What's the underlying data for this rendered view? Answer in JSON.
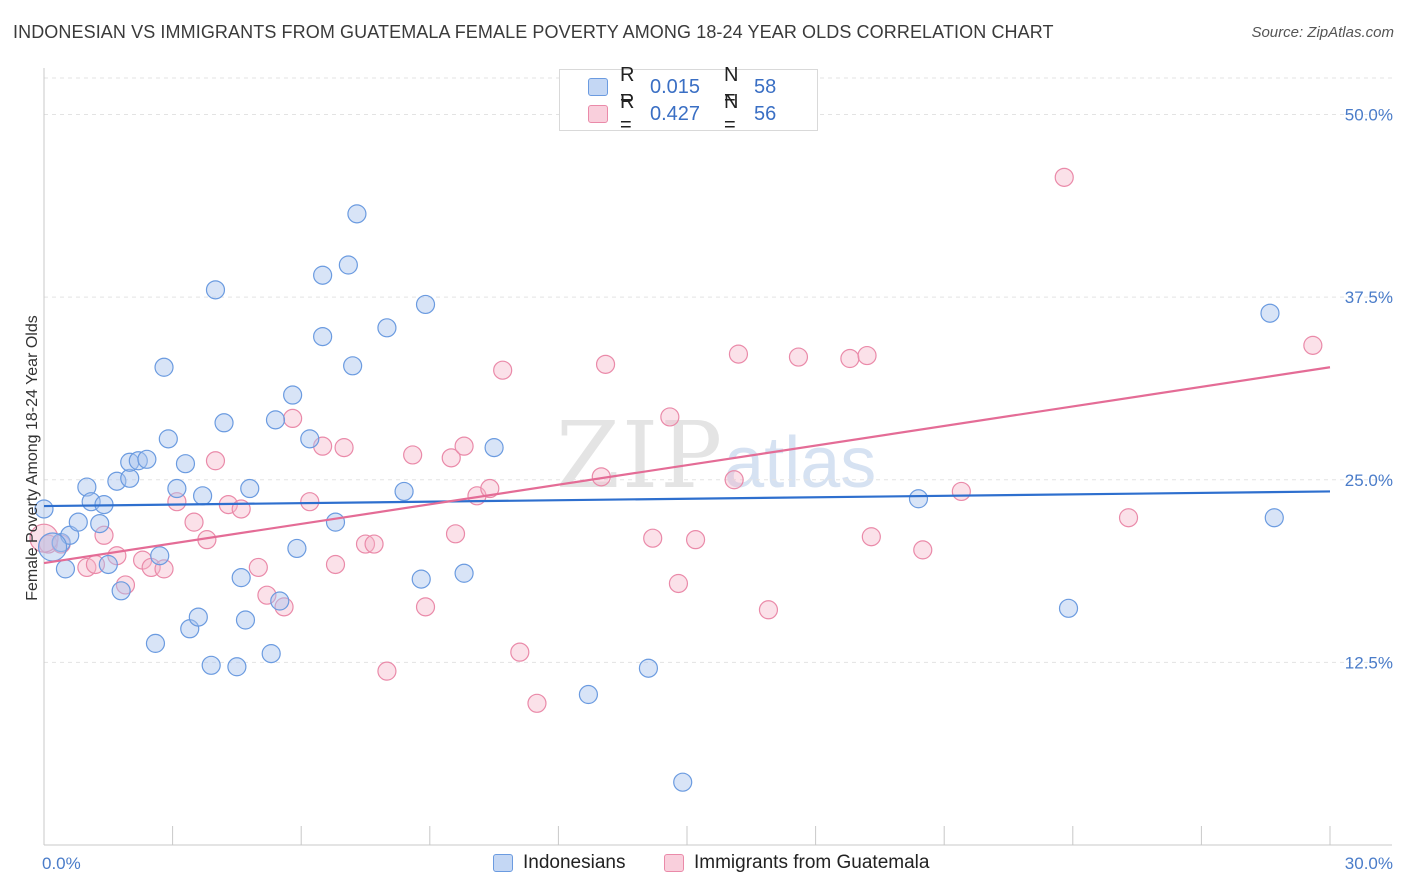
{
  "header": {
    "title": "INDONESIAN VS IMMIGRANTS FROM GUATEMALA FEMALE POVERTY AMONG 18-24 YEAR OLDS CORRELATION CHART",
    "source": "Source: ZipAtlas.com"
  },
  "watermark": {
    "zip": "ZIP",
    "atlas": "atlas"
  },
  "legend": {
    "r_label": "R =",
    "n_label": "N =",
    "series1": {
      "r": "0.015",
      "n": "58"
    },
    "series2": {
      "r": "0.427",
      "n": "56"
    }
  },
  "chart_data": {
    "type": "scatter",
    "title": "INDONESIAN VS IMMIGRANTS FROM GUATEMALA FEMALE POVERTY AMONG 18-24 YEAR OLDS CORRELATION CHART",
    "xlabel": "",
    "ylabel": "Female Poverty Among 18-24 Year Olds",
    "xlim": [
      0,
      30
    ],
    "ylim": [
      0,
      52.5
    ],
    "x_tick_labels": [
      "0.0%",
      "30.0%"
    ],
    "y_ticks": [
      12.5,
      25.0,
      37.5,
      50.0
    ],
    "y_tick_labels": [
      "12.5%",
      "25.0%",
      "37.5%",
      "50.0%"
    ],
    "colors": {
      "Indonesians": "#6b9be0",
      "Immigrants from Guatemala": "#ea8aa9",
      "line1": "#2e6fce",
      "line2": "#e46c96"
    },
    "series": [
      {
        "name": "Indonesians",
        "trend": {
          "x": [
            0,
            30
          ],
          "y": [
            23.2,
            24.2
          ]
        },
        "points": [
          [
            0.0,
            23.0
          ],
          [
            0.4,
            20.7
          ],
          [
            0.5,
            18.9
          ],
          [
            0.6,
            21.2
          ],
          [
            0.8,
            22.1
          ],
          [
            1.0,
            24.5
          ],
          [
            1.1,
            23.5
          ],
          [
            1.4,
            23.3
          ],
          [
            1.3,
            22.0
          ],
          [
            1.5,
            19.2
          ],
          [
            1.7,
            24.9
          ],
          [
            1.8,
            17.4
          ],
          [
            2.0,
            25.1
          ],
          [
            2.0,
            26.2
          ],
          [
            2.2,
            26.3
          ],
          [
            2.4,
            26.4
          ],
          [
            2.6,
            13.8
          ],
          [
            2.7,
            19.8
          ],
          [
            2.8,
            32.7
          ],
          [
            2.9,
            27.8
          ],
          [
            3.1,
            24.4
          ],
          [
            3.3,
            26.1
          ],
          [
            3.4,
            14.8
          ],
          [
            3.6,
            15.6
          ],
          [
            3.7,
            23.9
          ],
          [
            3.9,
            12.3
          ],
          [
            4.0,
            38.0
          ],
          [
            4.2,
            28.9
          ],
          [
            4.5,
            12.2
          ],
          [
            4.6,
            18.3
          ],
          [
            4.7,
            15.4
          ],
          [
            4.8,
            24.4
          ],
          [
            5.3,
            13.1
          ],
          [
            5.4,
            29.1
          ],
          [
            5.5,
            16.7
          ],
          [
            5.8,
            30.8
          ],
          [
            5.9,
            20.3
          ],
          [
            6.2,
            27.8
          ],
          [
            6.5,
            39.0
          ],
          [
            6.5,
            34.8
          ],
          [
            6.8,
            22.1
          ],
          [
            7.1,
            39.7
          ],
          [
            7.2,
            32.8
          ],
          [
            7.3,
            43.2
          ],
          [
            8.0,
            35.4
          ],
          [
            8.4,
            24.2
          ],
          [
            8.8,
            18.2
          ],
          [
            8.9,
            37.0
          ],
          [
            9.8,
            18.6
          ],
          [
            10.5,
            27.2
          ],
          [
            12.7,
            10.3
          ],
          [
            14.1,
            12.1
          ],
          [
            14.9,
            4.3
          ],
          [
            20.4,
            23.7
          ],
          [
            23.9,
            16.2
          ],
          [
            28.6,
            36.4
          ],
          [
            28.7,
            22.4
          ],
          [
            0.2,
            20.4
          ]
        ]
      },
      {
        "name": "Immigrants from Guatemala",
        "trend": {
          "x": [
            0,
            30
          ],
          "y": [
            19.3,
            32.7
          ]
        },
        "points": [
          [
            0.1,
            20.6
          ],
          [
            0.4,
            20.6
          ],
          [
            1.0,
            19.0
          ],
          [
            1.2,
            19.2
          ],
          [
            1.4,
            21.2
          ],
          [
            1.7,
            19.8
          ],
          [
            1.9,
            17.8
          ],
          [
            2.3,
            19.5
          ],
          [
            2.5,
            19.0
          ],
          [
            2.8,
            18.9
          ],
          [
            3.1,
            23.5
          ],
          [
            3.5,
            22.1
          ],
          [
            3.8,
            20.9
          ],
          [
            4.0,
            26.3
          ],
          [
            4.3,
            23.3
          ],
          [
            4.6,
            23.0
          ],
          [
            5.0,
            19.0
          ],
          [
            5.2,
            17.1
          ],
          [
            5.6,
            16.3
          ],
          [
            5.8,
            29.2
          ],
          [
            6.2,
            23.5
          ],
          [
            6.5,
            27.3
          ],
          [
            6.8,
            19.2
          ],
          [
            7.0,
            27.2
          ],
          [
            7.5,
            20.6
          ],
          [
            7.7,
            20.6
          ],
          [
            8.0,
            11.9
          ],
          [
            8.6,
            26.7
          ],
          [
            8.9,
            16.3
          ],
          [
            9.5,
            26.5
          ],
          [
            9.6,
            21.3
          ],
          [
            9.8,
            27.3
          ],
          [
            10.1,
            23.9
          ],
          [
            10.4,
            24.4
          ],
          [
            10.7,
            32.5
          ],
          [
            11.1,
            13.2
          ],
          [
            11.5,
            9.7
          ],
          [
            13.0,
            25.2
          ],
          [
            13.1,
            32.9
          ],
          [
            14.2,
            21.0
          ],
          [
            14.6,
            29.3
          ],
          [
            14.8,
            17.9
          ],
          [
            15.2,
            20.9
          ],
          [
            16.1,
            25.0
          ],
          [
            16.2,
            33.6
          ],
          [
            16.9,
            16.1
          ],
          [
            17.6,
            33.4
          ],
          [
            18.8,
            33.3
          ],
          [
            19.2,
            33.5
          ],
          [
            19.3,
            21.1
          ],
          [
            20.5,
            20.2
          ],
          [
            21.4,
            24.2
          ],
          [
            23.8,
            45.7
          ],
          [
            25.3,
            22.4
          ],
          [
            29.6,
            34.2
          ],
          [
            0.0,
            21.0
          ]
        ]
      }
    ]
  },
  "bottom_legend": {
    "item1": "Indonesians",
    "item2": "Immigrants from Guatemala"
  }
}
